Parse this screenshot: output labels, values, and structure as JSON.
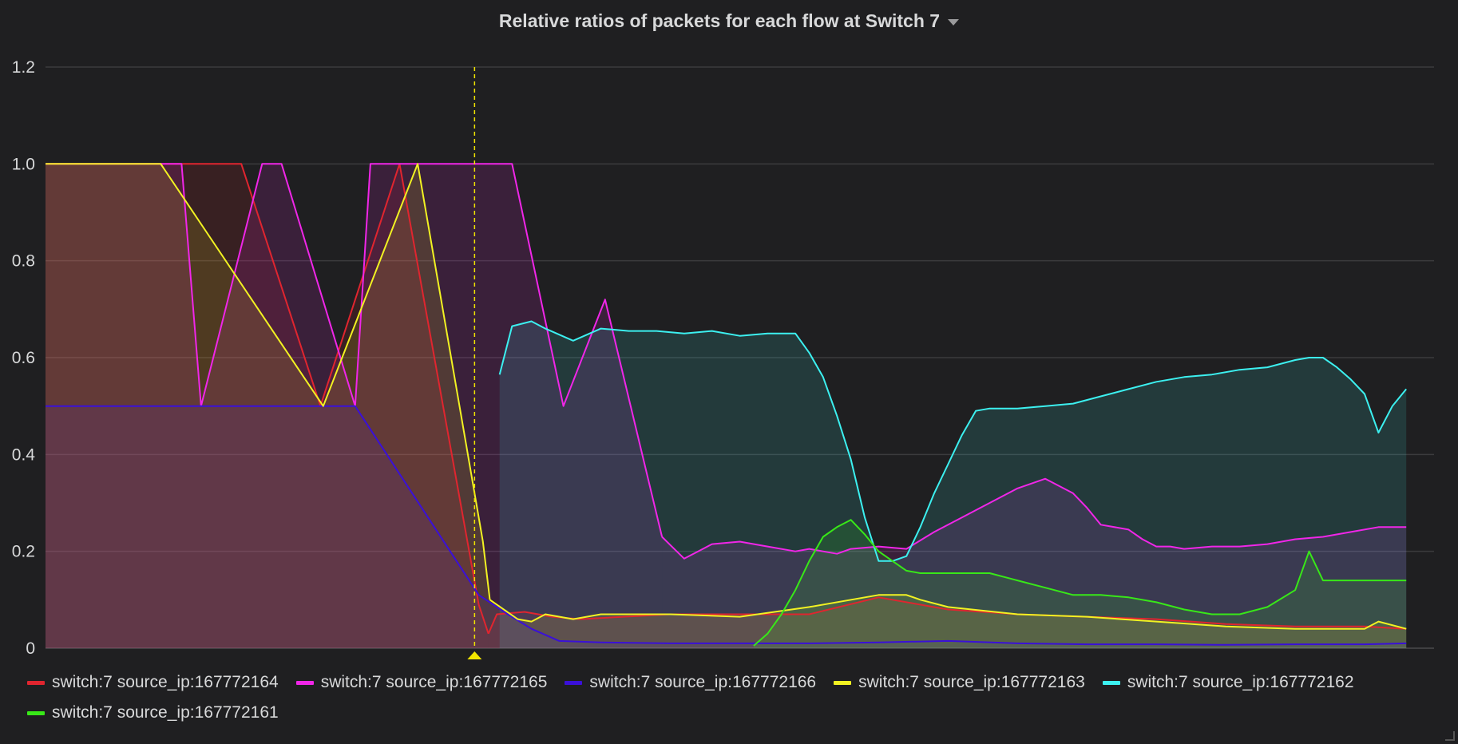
{
  "panel": {
    "title": "Relative ratios of packets for each flow at Switch 7"
  },
  "chart_data": {
    "type": "area",
    "title": "Relative ratios of packets for each flow at Switch 7",
    "xlabel": "",
    "ylabel": "",
    "ylim": [
      0,
      1.2
    ],
    "xlim": [
      0,
      100
    ],
    "grid": true,
    "legend_placement": "bottom",
    "y_ticks": [
      "0",
      "0.2",
      "0.4",
      "0.6",
      "0.8",
      "1.0",
      "1.2"
    ],
    "y_tick_values": [
      0,
      0.2,
      0.4,
      0.6,
      0.8,
      1.0,
      1.2
    ],
    "annotation_x": 30.9,
    "annotation_color": "#f2e600",
    "series": [
      {
        "name": "switch:7 source_ip:167772164",
        "color": "#e0252f",
        "x": [
          0,
          14.1,
          19.8,
          25.5,
          31.2,
          31.9
        ],
        "y": [
          1.0,
          1.0,
          0.5,
          1.0,
          0.09,
          0.03
        ],
        "x2": [
          31.9,
          32.5,
          34.5,
          36.5,
          38.5,
          45,
          50,
          55,
          60,
          65,
          70,
          75,
          80,
          85,
          90,
          95,
          98
        ],
        "y2": [
          0.03,
          0.07,
          0.075,
          0.065,
          0.06,
          0.07,
          0.07,
          0.07,
          0.105,
          0.08,
          0.07,
          0.065,
          0.06,
          0.05,
          0.045,
          0.045,
          0.04
        ]
      },
      {
        "name": "switch:7 source_ip:167772165",
        "color": "#f026e8",
        "x": [
          0,
          9.8,
          11.2,
          15.6,
          17.0,
          22.3,
          23.4,
          33.6,
          37.3,
          40.3,
          44.4
        ],
        "y": [
          1.0,
          1.0,
          0.5,
          1.0,
          1.0,
          0.5,
          1.0,
          1.0,
          0.5,
          0.72,
          0.23
        ],
        "x2": [
          44.4,
          45.1,
          46,
          47,
          48,
          50,
          52,
          54,
          55,
          56,
          57,
          58,
          60,
          62,
          64,
          66,
          68,
          70,
          72,
          74,
          75,
          76,
          78,
          79,
          80,
          81,
          82,
          84,
          86,
          88,
          90,
          92,
          94,
          96,
          98
        ],
        "y2": [
          0.23,
          0.21,
          0.185,
          0.2,
          0.215,
          0.22,
          0.21,
          0.2,
          0.205,
          0.2,
          0.195,
          0.205,
          0.21,
          0.205,
          0.24,
          0.27,
          0.3,
          0.33,
          0.35,
          0.32,
          0.29,
          0.255,
          0.245,
          0.225,
          0.21,
          0.21,
          0.205,
          0.21,
          0.21,
          0.215,
          0.225,
          0.23,
          0.24,
          0.25,
          0.25
        ]
      },
      {
        "name": "switch:7 source_ip:167772166",
        "color": "#3a10d8",
        "x": [
          0,
          22.3,
          31.2,
          33.3,
          35,
          37,
          40,
          45,
          50,
          55,
          60,
          65,
          70,
          75,
          80,
          85,
          90,
          95,
          98
        ],
        "y": [
          0.5,
          0.5,
          0.11,
          0.07,
          0.04,
          0.015,
          0.012,
          0.01,
          0.01,
          0.01,
          0.012,
          0.015,
          0.01,
          0.008,
          0.008,
          0.007,
          0.008,
          0.008,
          0.01
        ]
      },
      {
        "name": "switch:7 source_ip:167772163",
        "color": "#f2f222",
        "x": [
          0,
          8.3,
          20.0,
          26.8,
          31.5,
          32.0
        ],
        "y": [
          1.0,
          1.0,
          0.5,
          1.0,
          0.22,
          0.1
        ],
        "x2": [
          32.0,
          34,
          35,
          36,
          38,
          40,
          45,
          50,
          55,
          60,
          62,
          63,
          65,
          70,
          75,
          80,
          85,
          90,
          95,
          96,
          98
        ],
        "y2": [
          0.1,
          0.06,
          0.055,
          0.07,
          0.06,
          0.07,
          0.07,
          0.065,
          0.085,
          0.11,
          0.11,
          0.1,
          0.085,
          0.07,
          0.065,
          0.055,
          0.045,
          0.04,
          0.04,
          0.055,
          0.04
        ]
      },
      {
        "name": "switch:7 source_ip:167772162",
        "color": "#3cf0f0",
        "x": [
          32.7,
          33.6,
          35,
          36,
          38,
          40,
          42,
          44,
          46,
          48,
          50,
          52,
          54,
          55,
          56,
          57,
          58,
          59,
          60,
          61,
          62,
          63,
          64,
          65,
          66,
          67,
          68,
          70,
          72,
          74,
          76,
          78,
          80,
          82,
          84,
          86,
          88,
          90,
          91,
          92,
          93,
          94,
          95,
          96,
          97,
          98
        ],
        "y": [
          0.565,
          0.665,
          0.675,
          0.66,
          0.635,
          0.66,
          0.655,
          0.655,
          0.65,
          0.655,
          0.645,
          0.65,
          0.65,
          0.61,
          0.56,
          0.48,
          0.39,
          0.27,
          0.18,
          0.18,
          0.19,
          0.25,
          0.32,
          0.38,
          0.44,
          0.49,
          0.495,
          0.495,
          0.5,
          0.505,
          0.52,
          0.535,
          0.55,
          0.56,
          0.565,
          0.575,
          0.58,
          0.595,
          0.6,
          0.6,
          0.58,
          0.555,
          0.525,
          0.445,
          0.5,
          0.535
        ]
      },
      {
        "name": "switch:7 source_ip:167772161",
        "color": "#38e818",
        "x": [
          51,
          52,
          53,
          54,
          55,
          56,
          57,
          58,
          59,
          60,
          61,
          62,
          63,
          64,
          65,
          66,
          68,
          70,
          72,
          74,
          76,
          78,
          80,
          82,
          84,
          86,
          88,
          90,
          91,
          92,
          93,
          94,
          95,
          96,
          97,
          98
        ],
        "y": [
          0.005,
          0.03,
          0.07,
          0.12,
          0.18,
          0.23,
          0.25,
          0.265,
          0.235,
          0.2,
          0.18,
          0.16,
          0.155,
          0.155,
          0.155,
          0.155,
          0.155,
          0.14,
          0.125,
          0.11,
          0.11,
          0.105,
          0.095,
          0.08,
          0.07,
          0.07,
          0.085,
          0.12,
          0.2,
          0.14,
          0.14,
          0.14,
          0.14,
          0.14,
          0.14,
          0.14
        ]
      }
    ]
  }
}
